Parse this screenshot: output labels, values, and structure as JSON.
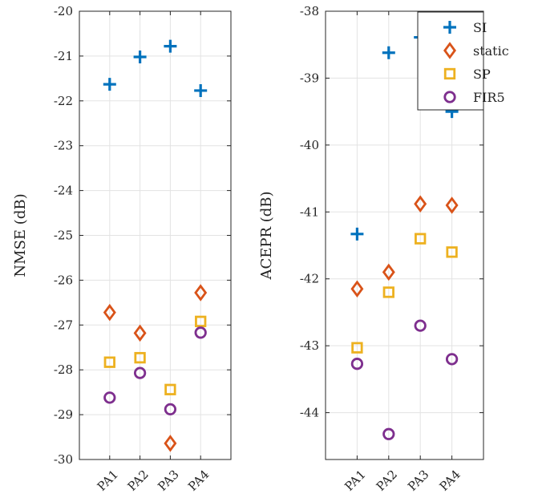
{
  "chart_data": [
    {
      "type": "scatter",
      "categories": [
        "PA1",
        "PA2",
        "PA3",
        "PA4"
      ],
      "ylabel": "NMSE (dB)",
      "ylim": [
        -30,
        -20
      ],
      "yticks": [
        -30,
        -29,
        -28,
        -27,
        -26,
        -25,
        -24,
        -23,
        -22,
        -21,
        -20
      ],
      "grid": true,
      "series": [
        {
          "name": "SI",
          "marker": "plus",
          "color": "#0072BD",
          "values": [
            -21.63,
            -21.02,
            -20.78,
            -21.77
          ]
        },
        {
          "name": "static",
          "marker": "diamond",
          "color": "#D95319",
          "values": [
            -26.72,
            -27.18,
            -29.64,
            -26.28
          ]
        },
        {
          "name": "SP",
          "marker": "square",
          "color": "#EDB120",
          "values": [
            -27.83,
            -27.73,
            -28.44,
            -26.92
          ]
        },
        {
          "name": "FIR5",
          "marker": "circle",
          "color": "#7E2F8E",
          "values": [
            -28.62,
            -28.07,
            -28.88,
            -27.17
          ]
        }
      ]
    },
    {
      "type": "scatter",
      "categories": [
        "PA1",
        "PA2",
        "PA3",
        "PA4"
      ],
      "ylabel": "ACEPR (dB)",
      "ylim": [
        -44.7,
        -38
      ],
      "yticks": [
        -44,
        -43,
        -42,
        -41,
        -40,
        -39,
        -38
      ],
      "grid": true,
      "legend_position": "top-right",
      "series": [
        {
          "name": "SI",
          "marker": "plus",
          "color": "#0072BD",
          "values": [
            -41.33,
            -38.62,
            -38.39,
            -39.5
          ]
        },
        {
          "name": "static",
          "marker": "diamond",
          "color": "#D95319",
          "values": [
            -42.15,
            -41.9,
            -40.88,
            -40.9
          ]
        },
        {
          "name": "SP",
          "marker": "square",
          "color": "#EDB120",
          "values": [
            -43.03,
            -42.2,
            -41.4,
            -41.6
          ]
        },
        {
          "name": "FIR5",
          "marker": "circle",
          "color": "#7E2F8E",
          "values": [
            -43.27,
            -44.32,
            -42.7,
            -43.2
          ]
        }
      ]
    }
  ],
  "legend": {
    "items": [
      {
        "label": "SI",
        "marker": "plus",
        "color": "#0072BD"
      },
      {
        "label": "static",
        "marker": "diamond",
        "color": "#D95319"
      },
      {
        "label": "SP",
        "marker": "square",
        "color": "#EDB120"
      },
      {
        "label": "FIR5",
        "marker": "circle",
        "color": "#7E2F8E"
      }
    ]
  }
}
